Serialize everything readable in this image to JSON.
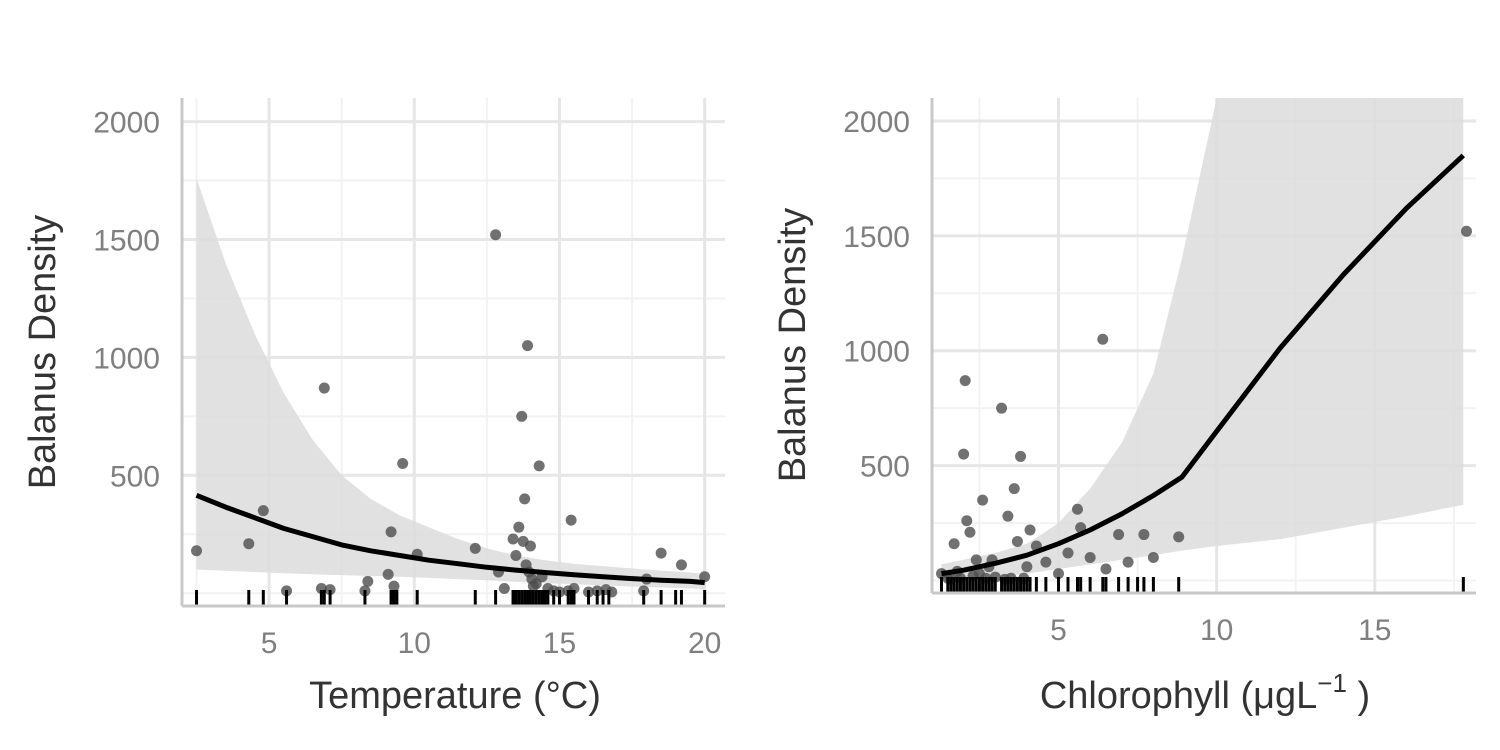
{
  "colors": {
    "background": "#ffffff",
    "grid_major": "#e6e6e6",
    "grid_minor": "#f2f2f2",
    "axis_line": "#c8c8c8",
    "ribbon": "#dcdcdc",
    "fit_line": "#000000",
    "points": "#4d4d4d",
    "rug": "#000000",
    "tick_text": "#7f7f7f",
    "title_text": "#333333"
  },
  "chart_data": [
    {
      "type": "scatter",
      "xlabel": "Temperature (°C)",
      "ylabel": "Balanus Density",
      "xlim": [
        2,
        20.7
      ],
      "ylim": [
        -50,
        2100
      ],
      "x_ticks": [
        5,
        10,
        15,
        20
      ],
      "x_minor_ticks": [
        2.5,
        7.5,
        12.5,
        17.5
      ],
      "y_ticks": [
        500,
        1000,
        1500,
        2000
      ],
      "y_minor_ticks": [
        0,
        250,
        750,
        1250,
        1750
      ],
      "grid": true,
      "legend": "none",
      "points": [
        [
          2.5,
          180
        ],
        [
          4.3,
          210
        ],
        [
          4.8,
          350
        ],
        [
          5.6,
          10
        ],
        [
          6.8,
          20
        ],
        [
          6.9,
          870
        ],
        [
          7.1,
          15
        ],
        [
          8.3,
          10
        ],
        [
          8.4,
          50
        ],
        [
          9.1,
          80
        ],
        [
          9.2,
          260
        ],
        [
          9.3,
          30
        ],
        [
          9.6,
          550
        ],
        [
          10.1,
          165
        ],
        [
          12.1,
          190
        ],
        [
          12.8,
          1520
        ],
        [
          12.9,
          90
        ],
        [
          13.1,
          20
        ],
        [
          13.4,
          230
        ],
        [
          13.5,
          160
        ],
        [
          13.6,
          280
        ],
        [
          13.7,
          750
        ],
        [
          13.75,
          220
        ],
        [
          13.8,
          400
        ],
        [
          13.85,
          120
        ],
        [
          13.9,
          1050
        ],
        [
          13.95,
          90
        ],
        [
          14.0,
          200
        ],
        [
          14.05,
          60
        ],
        [
          14.1,
          30
        ],
        [
          14.2,
          40
        ],
        [
          14.3,
          540
        ],
        [
          14.4,
          70
        ],
        [
          14.6,
          20
        ],
        [
          14.8,
          10
        ],
        [
          15.0,
          5
        ],
        [
          15.3,
          10
        ],
        [
          15.4,
          310
        ],
        [
          15.5,
          20
        ],
        [
          16.0,
          5
        ],
        [
          16.3,
          10
        ],
        [
          16.6,
          15
        ],
        [
          16.8,
          5
        ],
        [
          17.9,
          10
        ],
        [
          18.0,
          60
        ],
        [
          18.5,
          170
        ],
        [
          19.2,
          120
        ],
        [
          20.0,
          70
        ]
      ],
      "fit": {
        "x": [
          2.5,
          3.5,
          4.5,
          5.5,
          6.5,
          7.5,
          8.5,
          9.5,
          10.5,
          11.5,
          12.5,
          13.5,
          14.5,
          15.5,
          16.5,
          17.5,
          18.5,
          19.5,
          20.0
        ],
        "y": [
          415,
          365,
          320,
          275,
          240,
          205,
          180,
          160,
          140,
          125,
          110,
          98,
          88,
          78,
          70,
          62,
          55,
          50,
          45
        ],
        "lower": [
          100,
          95,
          90,
          85,
          80,
          77,
          73,
          70,
          65,
          60,
          55,
          48,
          43,
          38,
          33,
          28,
          24,
          20,
          18
        ],
        "upper": [
          1760,
          1400,
          1100,
          850,
          650,
          500,
          400,
          330,
          280,
          230,
          190,
          160,
          140,
          125,
          115,
          105,
          95,
          88,
          82
        ]
      },
      "rug": [
        2.5,
        4.3,
        4.8,
        5.6,
        6.8,
        6.9,
        7.1,
        8.3,
        9.2,
        9.3,
        9.4,
        10.1,
        12.1,
        12.8,
        13.4,
        13.5,
        13.6,
        13.7,
        13.8,
        13.9,
        14.0,
        14.1,
        14.2,
        14.3,
        14.4,
        14.5,
        14.6,
        14.8,
        15.0,
        15.3,
        15.4,
        15.5,
        16.0,
        16.3,
        16.5,
        16.7,
        17.9,
        18.5,
        19.0,
        19.2,
        20.0
      ]
    },
    {
      "type": "scatter",
      "xlabel": "Chlorophyll (μgL",
      "xlabel_superscript": "−1",
      "xlabel_suffix": " )",
      "ylabel": "Balanus Density",
      "xlim": [
        1,
        18.2
      ],
      "ylim": [
        -50,
        2100
      ],
      "x_ticks": [
        5,
        10,
        15
      ],
      "x_minor_ticks": [
        2.5,
        7.5,
        12.5,
        17.5
      ],
      "y_ticks": [
        500,
        1000,
        1500,
        2000
      ],
      "y_minor_ticks": [
        0,
        250,
        750,
        1250,
        1750
      ],
      "grid": true,
      "legend": "none",
      "points": [
        [
          1.3,
          30
        ],
        [
          1.5,
          10
        ],
        [
          1.6,
          5
        ],
        [
          1.7,
          160
        ],
        [
          1.8,
          40
        ],
        [
          1.9,
          10
        ],
        [
          2.0,
          550
        ],
        [
          2.05,
          870
        ],
        [
          2.1,
          260
        ],
        [
          2.2,
          210
        ],
        [
          2.3,
          20
        ],
        [
          2.4,
          90
        ],
        [
          2.5,
          30
        ],
        [
          2.6,
          350
        ],
        [
          2.7,
          10
        ],
        [
          2.8,
          60
        ],
        [
          2.9,
          90
        ],
        [
          3.0,
          15
        ],
        [
          3.2,
          750
        ],
        [
          3.3,
          5
        ],
        [
          3.4,
          280
        ],
        [
          3.5,
          10
        ],
        [
          3.6,
          400
        ],
        [
          3.7,
          170
        ],
        [
          3.8,
          540
        ],
        [
          3.9,
          10
        ],
        [
          4.0,
          60
        ],
        [
          4.1,
          220
        ],
        [
          4.3,
          150
        ],
        [
          4.6,
          80
        ],
        [
          5.0,
          30
        ],
        [
          5.3,
          120
        ],
        [
          5.6,
          310
        ],
        [
          5.7,
          230
        ],
        [
          6.0,
          100
        ],
        [
          6.4,
          1050
        ],
        [
          6.5,
          50
        ],
        [
          6.9,
          200
        ],
        [
          7.2,
          80
        ],
        [
          7.7,
          200
        ],
        [
          8.0,
          100
        ],
        [
          8.8,
          190
        ],
        [
          17.9,
          1520
        ]
      ],
      "fit": {
        "x": [
          1.3,
          2,
          3,
          4,
          5,
          6,
          7,
          8,
          8.9,
          10,
          12,
          14,
          16,
          17.8
        ],
        "y": [
          30,
          45,
          75,
          110,
          160,
          220,
          290,
          370,
          450,
          650,
          1010,
          1330,
          1620,
          1850
        ],
        "lower": [
          0,
          5,
          15,
          30,
          50,
          70,
          90,
          110,
          130,
          150,
          180,
          230,
          280,
          330
        ],
        "upper": [
          70,
          90,
          120,
          160,
          250,
          400,
          600,
          900,
          1400,
          2100,
          2100,
          2100,
          2100,
          2100
        ]
      },
      "rug": [
        1.3,
        1.5,
        1.6,
        1.7,
        1.8,
        1.9,
        2.0,
        2.1,
        2.2,
        2.3,
        2.4,
        2.5,
        2.6,
        2.7,
        2.8,
        2.9,
        3.0,
        3.2,
        3.3,
        3.4,
        3.5,
        3.6,
        3.7,
        3.8,
        3.9,
        4.0,
        4.1,
        4.3,
        4.6,
        5.0,
        5.3,
        5.6,
        5.7,
        6.0,
        6.4,
        6.5,
        6.9,
        7.2,
        7.5,
        7.7,
        8.0,
        8.8,
        17.8
      ]
    }
  ]
}
